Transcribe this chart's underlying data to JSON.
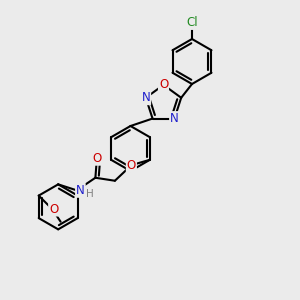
{
  "background_color": "#ebebeb",
  "atom_colors": {
    "C": "#000000",
    "N": "#2020cc",
    "O": "#cc0000",
    "Cl": "#228B22",
    "H": "#808080"
  },
  "bond_color": "#000000",
  "bond_width": 1.5,
  "font_size_atom": 8.5,
  "font_size_H": 7.5
}
